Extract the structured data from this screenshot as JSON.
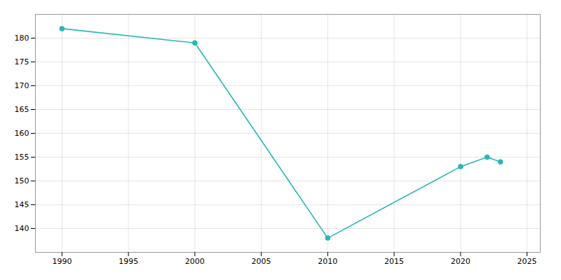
{
  "chart_data": {
    "type": "line",
    "x": [
      1990,
      2000,
      2010,
      2020,
      2022,
      2023
    ],
    "values": [
      182,
      179,
      138,
      153,
      155,
      154
    ],
    "color": "#2ab5b5",
    "marker": "circle",
    "xlim": [
      1988,
      2026
    ],
    "ylim": [
      135,
      185
    ],
    "xticks": [
      1990,
      1995,
      2000,
      2005,
      2010,
      2015,
      2020,
      2025
    ],
    "yticks": [
      140,
      145,
      150,
      155,
      160,
      165,
      170,
      175,
      180
    ],
    "grid": true
  }
}
